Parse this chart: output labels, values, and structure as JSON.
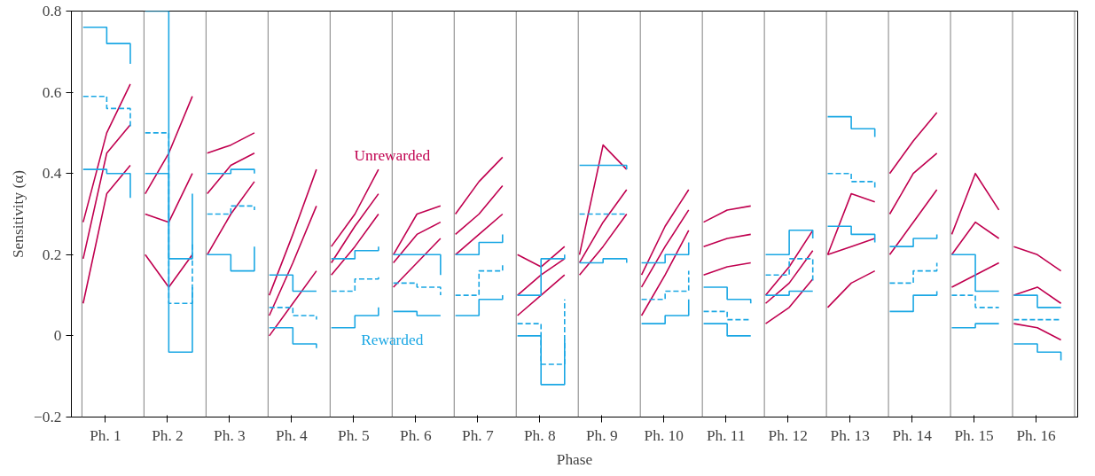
{
  "chart_data": {
    "type": "line",
    "xlabel": "Phase",
    "ylabel": "Sensitivity (α)",
    "x": [
      0.64,
      1.02,
      1.4,
      1.52,
      1.64,
      2.02,
      2.4,
      2.52,
      2.64,
      3.02,
      3.4,
      3.52,
      3.64,
      4.02,
      4.4,
      4.52,
      4.64,
      5.02,
      5.4,
      5.52,
      5.64,
      6.02,
      6.4,
      6.52,
      6.64,
      7.02,
      7.4,
      7.52,
      7.64,
      8.02,
      8.4,
      8.52,
      8.64,
      9.02,
      9.4,
      9.52,
      9.64,
      10.02,
      10.4,
      10.52,
      10.64,
      11.02,
      11.4,
      11.52,
      11.64,
      12.02,
      12.4,
      12.52,
      12.64,
      13.02,
      13.4,
      13.52,
      13.64,
      14.02,
      14.4,
      14.52,
      14.64,
      15.02,
      15.4,
      15.52,
      15.64,
      16.02,
      16.4
    ],
    "series": [
      {
        "color": "#c0004f",
        "values": [
          0.28,
          0.5,
          0.62,
          null,
          0.35,
          0.45,
          0.59,
          null,
          0.45,
          0.47,
          0.5,
          null,
          0.1,
          0.25,
          0.41,
          null,
          0.22,
          0.3,
          0.41,
          null,
          0.2,
          0.3,
          0.32,
          null,
          0.3,
          0.38,
          0.44,
          null,
          0.2,
          0.17,
          0.22,
          null,
          0.2,
          0.47,
          0.41,
          null,
          0.15,
          0.27,
          0.36,
          null,
          0.28,
          0.31,
          0.32,
          null,
          0.1,
          0.17,
          0.26,
          null,
          0.2,
          0.35,
          0.33,
          null,
          0.4,
          0.48,
          0.55,
          null,
          0.25,
          0.4,
          0.31,
          null,
          0.22,
          0.2,
          0.16
        ]
      },
      {
        "color": "#c0004f",
        "values": [
          0.19,
          0.45,
          0.52,
          null,
          0.3,
          0.28,
          0.4,
          null,
          0.35,
          0.42,
          0.45,
          null,
          0.05,
          0.18,
          0.32,
          null,
          0.18,
          0.27,
          0.35,
          null,
          0.18,
          0.25,
          0.28,
          null,
          0.25,
          0.3,
          0.37,
          null,
          0.1,
          0.15,
          0.19,
          null,
          0.18,
          0.28,
          0.36,
          null,
          0.12,
          0.22,
          0.31,
          null,
          0.22,
          0.24,
          0.25,
          null,
          0.08,
          0.13,
          0.21,
          null,
          0.2,
          0.22,
          0.24,
          null,
          0.3,
          0.4,
          0.45,
          null,
          0.2,
          0.28,
          0.24,
          null,
          0.1,
          0.12,
          0.08
        ]
      },
      {
        "color": "#c0004f",
        "values": [
          0.08,
          0.35,
          0.42,
          null,
          0.2,
          0.12,
          0.2,
          null,
          0.2,
          0.3,
          0.38,
          null,
          0.0,
          0.08,
          0.16,
          null,
          0.15,
          0.22,
          0.3,
          null,
          0.12,
          0.18,
          0.24,
          null,
          0.2,
          0.25,
          0.3,
          null,
          0.05,
          0.1,
          0.15,
          null,
          0.15,
          0.22,
          0.3,
          null,
          0.05,
          0.15,
          0.26,
          null,
          0.15,
          0.17,
          0.18,
          null,
          0.03,
          0.07,
          0.14,
          null,
          0.07,
          0.13,
          0.16,
          null,
          0.2,
          0.28,
          0.36,
          null,
          0.12,
          0.15,
          0.18,
          null,
          0.03,
          0.02,
          -0.01
        ]
      },
      {
        "type": "step",
        "color": "#1aa7e4",
        "values": [
          0.76,
          0.72,
          0.67,
          null,
          0.8,
          0.19,
          0.35,
          null,
          0.4,
          0.41,
          0.4,
          null,
          0.15,
          0.11,
          0.11,
          null,
          0.19,
          0.21,
          0.22,
          null,
          0.2,
          0.2,
          0.15,
          null,
          0.2,
          0.23,
          0.25,
          null,
          0.1,
          0.19,
          0.2,
          null,
          0.42,
          0.42,
          0.41,
          null,
          0.18,
          0.2,
          0.23,
          null,
          0.12,
          0.09,
          0.08,
          null,
          0.2,
          0.26,
          0.24,
          null,
          0.54,
          0.51,
          0.49,
          null,
          0.22,
          0.24,
          0.25,
          null,
          0.2,
          0.11,
          0.11,
          null,
          0.1,
          0.07,
          0.07
        ]
      },
      {
        "type": "step",
        "color": "#1aa7e4",
        "line_style": "dashed",
        "values": [
          0.59,
          0.56,
          0.51,
          null,
          0.5,
          0.08,
          0.23,
          null,
          0.3,
          0.32,
          0.31,
          null,
          0.07,
          0.05,
          0.04,
          null,
          0.11,
          0.14,
          0.15,
          null,
          0.13,
          0.12,
          0.1,
          null,
          0.1,
          0.16,
          0.18,
          null,
          0.03,
          -0.07,
          0.09,
          null,
          0.3,
          0.3,
          0.3,
          null,
          0.09,
          0.11,
          0.16,
          null,
          0.06,
          0.04,
          0.04,
          null,
          0.15,
          0.19,
          0.13,
          null,
          0.4,
          0.38,
          0.36,
          null,
          0.13,
          0.16,
          0.18,
          null,
          0.1,
          0.07,
          0.07,
          null,
          0.04,
          0.04,
          0.04
        ]
      },
      {
        "type": "step",
        "color": "#1aa7e4",
        "values": [
          0.41,
          0.4,
          0.34,
          null,
          0.4,
          -0.04,
          0.12,
          null,
          0.2,
          0.16,
          0.22,
          null,
          0.02,
          -0.02,
          -0.03,
          null,
          0.02,
          0.05,
          0.07,
          null,
          0.06,
          0.05,
          0.05,
          null,
          0.05,
          0.09,
          0.1,
          null,
          0.0,
          -0.12,
          -0.01,
          null,
          0.18,
          0.19,
          0.18,
          null,
          0.03,
          0.05,
          0.09,
          null,
          0.03,
          0.0,
          0.0,
          null,
          0.1,
          0.11,
          0.11,
          null,
          0.27,
          0.25,
          0.23,
          null,
          0.06,
          0.1,
          0.11,
          null,
          0.02,
          0.03,
          0.03,
          null,
          -0.02,
          -0.04,
          -0.06
        ]
      }
    ],
    "annotations": [
      {
        "text": "Unrewarded",
        "x": 5.62,
        "y": 0.445
      },
      {
        "text": "Rewarded",
        "x": 5.62,
        "y": -0.01
      }
    ],
    "ref_lines": [
      {
        "axis": "x",
        "value": 0.62,
        "color": "#808080"
      },
      {
        "axis": "x",
        "value": 1.62,
        "color": "#808080"
      },
      {
        "axis": "x",
        "value": 2.62,
        "color": "#808080"
      },
      {
        "axis": "x",
        "value": 3.62,
        "color": "#808080"
      },
      {
        "axis": "x",
        "value": 4.62,
        "color": "#808080"
      },
      {
        "axis": "x",
        "value": 5.62,
        "color": "#808080"
      },
      {
        "axis": "x",
        "value": 6.62,
        "color": "#808080"
      },
      {
        "axis": "x",
        "value": 7.62,
        "color": "#808080"
      },
      {
        "axis": "x",
        "value": 8.62,
        "color": "#808080"
      },
      {
        "axis": "x",
        "value": 9.62,
        "color": "#808080"
      },
      {
        "axis": "x",
        "value": 10.62,
        "color": "#808080"
      },
      {
        "axis": "x",
        "value": 11.62,
        "color": "#808080"
      },
      {
        "axis": "x",
        "value": 12.62,
        "color": "#808080"
      },
      {
        "axis": "x",
        "value": 13.62,
        "color": "#808080"
      },
      {
        "axis": "x",
        "value": 14.62,
        "color": "#808080"
      },
      {
        "axis": "x",
        "value": 15.62,
        "color": "#808080"
      },
      {
        "axis": "x",
        "value": 16.62,
        "color": "#808080"
      }
    ],
    "xlim": [
      0.45,
      16.67
    ],
    "xticks": [
      {
        "value": 1,
        "label": "Ph. 1"
      },
      {
        "value": 2,
        "label": "Ph. 2"
      },
      {
        "value": 3,
        "label": "Ph. 3"
      },
      {
        "value": 4,
        "label": "Ph. 4"
      },
      {
        "value": 5,
        "label": "Ph. 5"
      },
      {
        "value": 6,
        "label": "Ph. 6"
      },
      {
        "value": 7,
        "label": "Ph. 7"
      },
      {
        "value": 8,
        "label": "Ph. 8"
      },
      {
        "value": 9,
        "label": "Ph. 9"
      },
      {
        "value": 10,
        "label": "Ph. 10"
      },
      {
        "value": 11,
        "label": "Ph. 11"
      },
      {
        "value": 12,
        "label": "Ph. 12"
      },
      {
        "value": 13,
        "label": "Ph. 13"
      },
      {
        "value": 14,
        "label": "Ph. 14"
      },
      {
        "value": 15,
        "label": "Ph. 15"
      },
      {
        "value": 16,
        "label": "Ph. 16"
      }
    ],
    "ylim": [
      -0.2,
      0.8
    ],
    "yticks": [
      {
        "value": -0.2,
        "label": "−0.2"
      },
      0,
      0.2,
      0.4,
      0.6,
      0.8
    ],
    "grid": false
  }
}
